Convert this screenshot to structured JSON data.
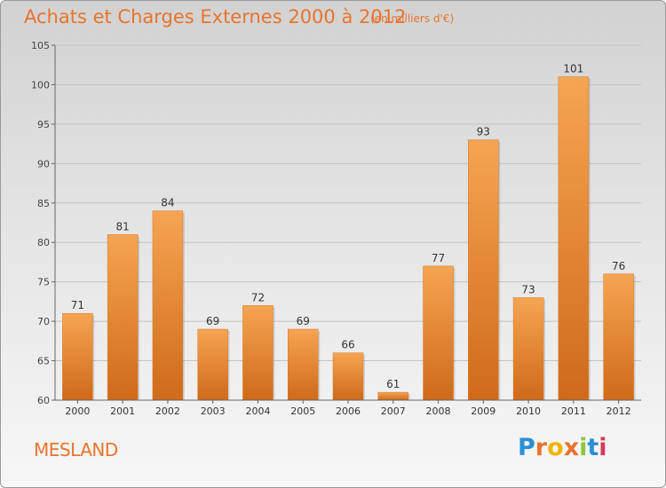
{
  "title": "Achats et Charges Externes 2000 à 2012",
  "subtitle": "(en milliers d'€)",
  "commune": "MESLAND",
  "logo": {
    "letters": [
      "P",
      "r",
      "o",
      "x",
      "i",
      "t",
      "i"
    ],
    "colors": [
      "#2a8fd6",
      "#e8742c",
      "#f0b400",
      "#e8742c",
      "#8cc63f",
      "#2a8fd6",
      "#d43a5c"
    ]
  },
  "colors": {
    "bar_light": "#f5a552",
    "bar_dark": "#cf6a1a",
    "accent": "#e8742c"
  },
  "chart_data": {
    "type": "bar",
    "categories": [
      "2000",
      "2001",
      "2002",
      "2003",
      "2004",
      "2005",
      "2006",
      "2007",
      "2008",
      "2009",
      "2010",
      "2011",
      "2012"
    ],
    "values": [
      71,
      81,
      84,
      69,
      72,
      69,
      66,
      61,
      77,
      93,
      73,
      101,
      76
    ],
    "data_labels": [
      "71",
      "81",
      "84",
      "69",
      "72",
      "69",
      "66",
      "61",
      "77",
      "93",
      "73",
      "101",
      "76"
    ],
    "yticks": [
      "60",
      "65",
      "70",
      "75",
      "80",
      "85",
      "90",
      "95",
      "100",
      "105"
    ],
    "ylim": [
      60,
      105
    ],
    "grid": true,
    "title": "Achats et Charges Externes 2000 à 2012",
    "xlabel": "",
    "ylabel": ""
  }
}
